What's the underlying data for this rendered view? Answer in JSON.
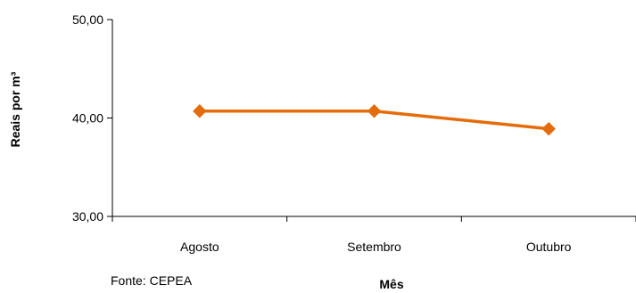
{
  "chart_data": {
    "type": "line",
    "categories": [
      "Agosto",
      "Setembro",
      "Outubro"
    ],
    "series": [
      {
        "values": [
          40.7,
          40.7,
          38.9
        ],
        "color": "#E46C0A",
        "marker": "diamond"
      }
    ],
    "xlabel": "Mês",
    "ylabel": "Reais por m³",
    "ylim": [
      30,
      50
    ],
    "yticks": [
      "30,00",
      "40,00",
      "50,00"
    ],
    "grid": false,
    "legend": "none"
  },
  "source_note": "Fonte: CEPEA"
}
